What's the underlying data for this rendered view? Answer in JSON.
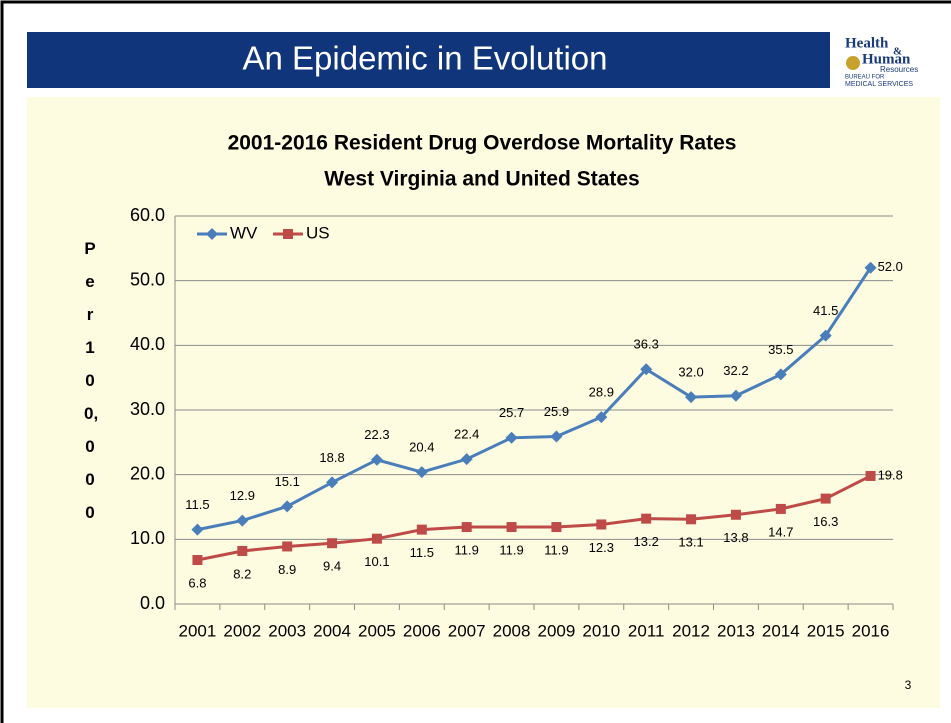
{
  "header": {
    "title": "An Epidemic in Evolution",
    "logo": [
      "Health",
      "&",
      "Human",
      "Resources",
      "BUREAU FOR",
      "MEDICAL SERVICES"
    ]
  },
  "page_number": "3",
  "chart_data": {
    "type": "line",
    "title": [
      "2001-2016 Resident Drug Overdose Mortality Rates",
      "West Virginia and United States"
    ],
    "ylabel": "Per 100,000",
    "categories": [
      "2001",
      "2002",
      "2003",
      "2004",
      "2005",
      "2006",
      "2007",
      "2008",
      "2009",
      "2010",
      "2011",
      "2012",
      "2013",
      "2014",
      "2015",
      "2016"
    ],
    "series": [
      {
        "name": "WV",
        "color": "#4a7ebb",
        "marker": "diamond",
        "values": [
          11.5,
          12.9,
          15.1,
          18.8,
          22.3,
          20.4,
          22.4,
          25.7,
          25.9,
          28.9,
          36.3,
          32.0,
          32.2,
          35.5,
          41.5,
          52.0
        ],
        "value_labels": [
          "11.5",
          "12.9",
          "15.1",
          "18.8",
          "22.3",
          "20.4",
          "22.4",
          "25.7",
          "25.9",
          "28.9",
          "36.3",
          "32.0",
          "32.2",
          "35.5",
          "41.5",
          "52.0"
        ]
      },
      {
        "name": "US",
        "color": "#be4b48",
        "marker": "square",
        "values": [
          6.8,
          8.2,
          8.9,
          9.4,
          10.1,
          11.5,
          11.9,
          11.9,
          11.9,
          12.3,
          13.2,
          13.1,
          13.8,
          14.7,
          16.3,
          19.8
        ],
        "value_labels": [
          "6.8",
          "8.2",
          "8.9",
          "9.4",
          "10.1",
          "11.5",
          "11.9",
          "11.9",
          "11.9",
          "12.3",
          "13.2",
          "13.1",
          "13.8",
          "14.7",
          "16.3",
          "19.8"
        ]
      }
    ],
    "ylim": [
      0,
      60
    ],
    "yticks": [
      {
        "value": 0,
        "label": "0.0"
      },
      {
        "value": 10,
        "label": "10.0"
      },
      {
        "value": 20,
        "label": "20.0"
      },
      {
        "value": 30,
        "label": "30.0"
      },
      {
        "value": 40,
        "label": "40.0"
      },
      {
        "value": 50,
        "label": "50.0"
      },
      {
        "value": 60,
        "label": "60.0"
      }
    ],
    "grid": true,
    "legend": "top-left"
  }
}
